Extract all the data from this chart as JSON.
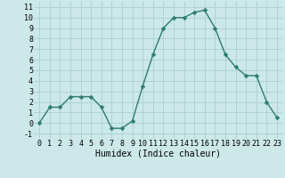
{
  "x": [
    0,
    1,
    2,
    3,
    4,
    5,
    6,
    7,
    8,
    9,
    10,
    11,
    12,
    13,
    14,
    15,
    16,
    17,
    18,
    19,
    20,
    21,
    22,
    23
  ],
  "y": [
    0.0,
    1.5,
    1.5,
    2.5,
    2.5,
    2.5,
    1.5,
    -0.5,
    -0.5,
    0.2,
    3.5,
    6.5,
    9.0,
    10.0,
    10.0,
    10.5,
    10.7,
    9.0,
    6.5,
    5.3,
    4.5,
    4.5,
    2.0,
    0.5
  ],
  "line_color": "#2e7d6e",
  "marker_color": "#2e7d6e",
  "bg_color": "#cce8e8",
  "grid_color": "#aad0d0",
  "xlabel": "Humidex (Indice chaleur)",
  "ylim": [
    -1.5,
    11.5
  ],
  "xlim": [
    -0.5,
    23.5
  ],
  "yticks": [
    -1,
    0,
    1,
    2,
    3,
    4,
    5,
    6,
    7,
    8,
    9,
    10,
    11
  ],
  "xticks": [
    0,
    1,
    2,
    3,
    4,
    5,
    6,
    7,
    8,
    9,
    10,
    11,
    12,
    13,
    14,
    15,
    16,
    17,
    18,
    19,
    20,
    21,
    22,
    23
  ],
  "xlabel_fontsize": 7,
  "tick_fontsize": 6,
  "marker_size": 2.5,
  "line_width": 1.0
}
